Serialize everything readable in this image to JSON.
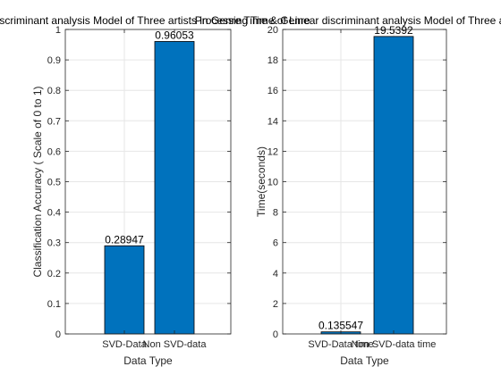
{
  "chart_data": [
    {
      "type": "bar",
      "title": "Linear discriminant analysis Model of Three artists in Genre Time & Genre",
      "xlabel": "Data Type",
      "ylabel": "Classification Accuracy ( Scale of 0 to 1)",
      "categories": [
        "SVD-Data",
        "Non SVD-data"
      ],
      "values": [
        0.28947,
        0.96053
      ],
      "data_labels": [
        "0.28947",
        "0.96053"
      ],
      "ylim": [
        0,
        1
      ],
      "yticks": [
        0,
        0.1,
        0.2,
        0.3,
        0.4,
        0.5,
        0.6,
        0.7,
        0.8,
        0.9,
        1
      ],
      "ytick_labels": [
        "0",
        "0.1",
        "0.2",
        "0.3",
        "0.4",
        "0.5",
        "0.6",
        "0.7",
        "0.8",
        "0.9",
        "1"
      ],
      "grid": true,
      "bar_color": "#0072BD"
    },
    {
      "type": "bar",
      "title": "Processing Time of Linear discriminant analysis Model of Three artists in",
      "xlabel": "Data Type",
      "ylabel": "Time(seconds)",
      "categories": [
        "SVD-Data time",
        "Non SVD-data time"
      ],
      "values": [
        0.135547,
        19.5392
      ],
      "data_labels": [
        "0.135547",
        "19.5392"
      ],
      "ylim": [
        0,
        20
      ],
      "yticks": [
        0,
        2,
        4,
        6,
        8,
        10,
        12,
        14,
        16,
        18,
        20
      ],
      "ytick_labels": [
        "0",
        "2",
        "4",
        "6",
        "8",
        "10",
        "12",
        "14",
        "16",
        "18",
        "20"
      ],
      "grid": true,
      "bar_color": "#0072BD"
    }
  ]
}
